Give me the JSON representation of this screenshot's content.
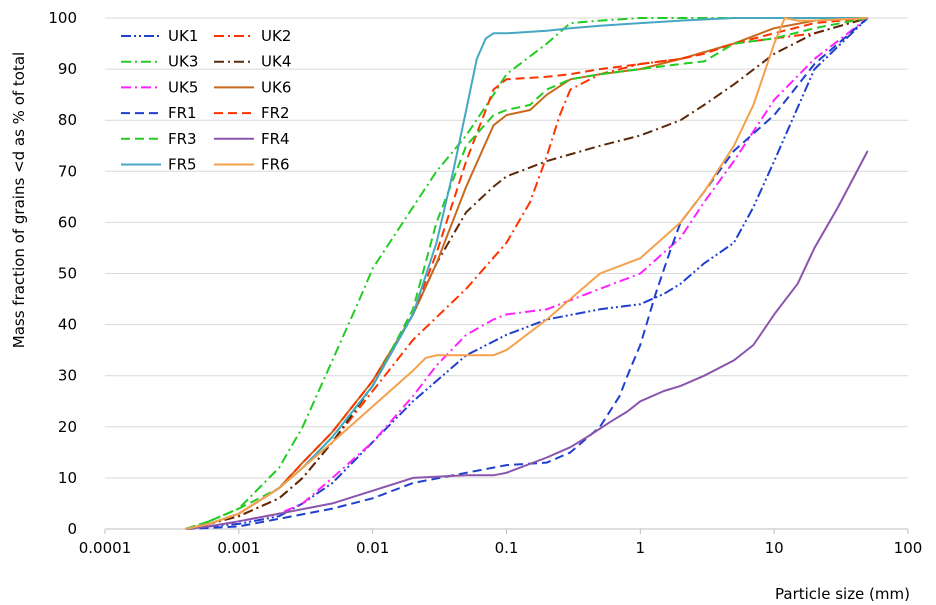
{
  "chart_data": {
    "type": "line",
    "title": "",
    "xlabel": "Particle size (mm)",
    "ylabel": "Mass fraction of grains <d as % of total",
    "x_scale": "log",
    "xlim": [
      0.0001,
      100
    ],
    "ylim": [
      0,
      100
    ],
    "x_ticks": [
      "0.0001",
      "0.001",
      "0.01",
      "0.1",
      "1",
      "10",
      "100"
    ],
    "y_ticks": [
      "0",
      "10",
      "20",
      "30",
      "40",
      "50",
      "60",
      "70",
      "80",
      "90",
      "100"
    ],
    "grid": "horizontal",
    "legend": {
      "placement": "top-left",
      "columns": 2
    },
    "series": [
      {
        "name": "UK1",
        "color": "#1f3fcf",
        "dash": "dashdotdot",
        "points": [
          [
            0.0004,
            0
          ],
          [
            0.0006,
            0.5
          ],
          [
            0.001,
            1
          ],
          [
            0.002,
            2.5
          ],
          [
            0.003,
            5
          ],
          [
            0.005,
            9
          ],
          [
            0.01,
            17
          ],
          [
            0.02,
            25
          ],
          [
            0.05,
            34
          ],
          [
            0.1,
            38
          ],
          [
            0.2,
            41
          ],
          [
            0.5,
            43
          ],
          [
            1,
            44
          ],
          [
            1.5,
            46
          ],
          [
            2,
            48
          ],
          [
            3,
            52
          ],
          [
            5,
            56
          ],
          [
            7,
            63
          ],
          [
            10,
            72
          ],
          [
            20,
            90
          ],
          [
            50,
            100
          ]
        ]
      },
      {
        "name": "UK2",
        "color": "#ff3300",
        "dash": "dashdot",
        "points": [
          [
            0.0004,
            0
          ],
          [
            0.0006,
            1
          ],
          [
            0.001,
            2.5
          ],
          [
            0.002,
            6
          ],
          [
            0.003,
            10
          ],
          [
            0.005,
            17
          ],
          [
            0.01,
            27
          ],
          [
            0.02,
            37
          ],
          [
            0.05,
            47
          ],
          [
            0.1,
            56
          ],
          [
            0.15,
            64
          ],
          [
            0.2,
            73
          ],
          [
            0.25,
            81
          ],
          [
            0.3,
            86
          ],
          [
            0.5,
            89
          ],
          [
            1,
            91
          ],
          [
            2,
            92
          ],
          [
            5,
            95
          ],
          [
            10,
            96
          ],
          [
            20,
            97
          ],
          [
            50,
            100
          ]
        ]
      },
      {
        "name": "UK3",
        "color": "#22cc22",
        "dash": "dashdot",
        "points": [
          [
            0.0004,
            0
          ],
          [
            0.0006,
            1.5
          ],
          [
            0.001,
            4
          ],
          [
            0.002,
            12
          ],
          [
            0.003,
            20
          ],
          [
            0.005,
            33
          ],
          [
            0.008,
            45
          ],
          [
            0.01,
            51
          ],
          [
            0.02,
            63
          ],
          [
            0.03,
            70
          ],
          [
            0.05,
            77
          ],
          [
            0.08,
            85
          ],
          [
            0.1,
            89
          ],
          [
            0.2,
            95
          ],
          [
            0.3,
            99
          ],
          [
            0.5,
            99.5
          ],
          [
            1,
            100
          ],
          [
            50,
            100
          ]
        ]
      },
      {
        "name": "UK4",
        "color": "#5c2a0a",
        "dash": "dashdot",
        "points": [
          [
            0.0004,
            0
          ],
          [
            0.0006,
            1
          ],
          [
            0.001,
            2.5
          ],
          [
            0.002,
            6
          ],
          [
            0.003,
            10
          ],
          [
            0.005,
            17
          ],
          [
            0.01,
            28
          ],
          [
            0.02,
            42
          ],
          [
            0.03,
            52
          ],
          [
            0.05,
            62
          ],
          [
            0.08,
            67
          ],
          [
            0.1,
            69
          ],
          [
            0.2,
            72
          ],
          [
            0.5,
            75
          ],
          [
            1,
            77
          ],
          [
            2,
            80
          ],
          [
            3,
            83
          ],
          [
            5,
            87
          ],
          [
            10,
            93
          ],
          [
            20,
            97
          ],
          [
            50,
            100
          ]
        ]
      },
      {
        "name": "UK5",
        "color": "#ff22ff",
        "dash": "dashdot",
        "points": [
          [
            0.0004,
            0
          ],
          [
            0.0006,
            0.5
          ],
          [
            0.001,
            1.5
          ],
          [
            0.002,
            3
          ],
          [
            0.003,
            5
          ],
          [
            0.005,
            10
          ],
          [
            0.01,
            17
          ],
          [
            0.02,
            26
          ],
          [
            0.03,
            32
          ],
          [
            0.05,
            38
          ],
          [
            0.08,
            41
          ],
          [
            0.1,
            42
          ],
          [
            0.2,
            43
          ],
          [
            0.5,
            47
          ],
          [
            1,
            50
          ],
          [
            2,
            57
          ],
          [
            3,
            64
          ],
          [
            5,
            72
          ],
          [
            10,
            84
          ],
          [
            20,
            92
          ],
          [
            50,
            100
          ]
        ]
      },
      {
        "name": "UK6",
        "color": "#c8691e",
        "dash": "solid",
        "points": [
          [
            0.0004,
            0
          ],
          [
            0.0006,
            1
          ],
          [
            0.001,
            3
          ],
          [
            0.002,
            8
          ],
          [
            0.003,
            13
          ],
          [
            0.005,
            19
          ],
          [
            0.01,
            29
          ],
          [
            0.02,
            42
          ],
          [
            0.03,
            52
          ],
          [
            0.05,
            67
          ],
          [
            0.08,
            79
          ],
          [
            0.1,
            81
          ],
          [
            0.15,
            82
          ],
          [
            0.2,
            85
          ],
          [
            0.3,
            88
          ],
          [
            0.5,
            89
          ],
          [
            1,
            90
          ],
          [
            2,
            92
          ],
          [
            5,
            95
          ],
          [
            10,
            98
          ],
          [
            20,
            99.5
          ],
          [
            50,
            100
          ]
        ]
      },
      {
        "name": "FR1",
        "color": "#1f3fcf",
        "dash": "dashed",
        "points": [
          [
            0.0004,
            0
          ],
          [
            0.001,
            0.5
          ],
          [
            0.002,
            2
          ],
          [
            0.005,
            4
          ],
          [
            0.01,
            6
          ],
          [
            0.02,
            9
          ],
          [
            0.05,
            11
          ],
          [
            0.1,
            12.5
          ],
          [
            0.2,
            13
          ],
          [
            0.3,
            15
          ],
          [
            0.5,
            20
          ],
          [
            0.7,
            26
          ],
          [
            0.8,
            30
          ],
          [
            1,
            36
          ],
          [
            1.3,
            46
          ],
          [
            1.7,
            55
          ],
          [
            2,
            60
          ],
          [
            3,
            66
          ],
          [
            5,
            74
          ],
          [
            10,
            81
          ],
          [
            20,
            91
          ],
          [
            50,
            100
          ]
        ]
      },
      {
        "name": "FR2",
        "color": "#ff3300",
        "dash": "dashed",
        "points": [
          [
            0.0004,
            0
          ],
          [
            0.0006,
            1
          ],
          [
            0.001,
            3
          ],
          [
            0.002,
            8
          ],
          [
            0.003,
            13
          ],
          [
            0.005,
            19
          ],
          [
            0.01,
            29
          ],
          [
            0.02,
            42
          ],
          [
            0.03,
            54
          ],
          [
            0.05,
            72
          ],
          [
            0.07,
            82
          ],
          [
            0.08,
            86
          ],
          [
            0.1,
            88
          ],
          [
            0.2,
            88.5
          ],
          [
            0.3,
            89
          ],
          [
            0.5,
            90
          ],
          [
            1,
            91
          ],
          [
            2,
            92
          ],
          [
            3,
            93
          ],
          [
            5,
            95
          ],
          [
            10,
            97
          ],
          [
            20,
            99
          ],
          [
            50,
            100
          ]
        ]
      },
      {
        "name": "FR3",
        "color": "#22cc22",
        "dash": "dashed",
        "points": [
          [
            0.0004,
            0
          ],
          [
            0.0006,
            1.5
          ],
          [
            0.001,
            4
          ],
          [
            0.002,
            8
          ],
          [
            0.003,
            12
          ],
          [
            0.005,
            18
          ],
          [
            0.01,
            28
          ],
          [
            0.02,
            43
          ],
          [
            0.03,
            60
          ],
          [
            0.05,
            75
          ],
          [
            0.08,
            81
          ],
          [
            0.1,
            82
          ],
          [
            0.15,
            83
          ],
          [
            0.2,
            86
          ],
          [
            0.3,
            88
          ],
          [
            0.5,
            89
          ],
          [
            1,
            90
          ],
          [
            2,
            91
          ],
          [
            3,
            91.5
          ],
          [
            5,
            95
          ],
          [
            10,
            96
          ],
          [
            20,
            98
          ],
          [
            50,
            100
          ]
        ]
      },
      {
        "name": "FR4",
        "color": "#8a55ad",
        "dash": "solid",
        "points": [
          [
            0.0004,
            0
          ],
          [
            0.0006,
            0.5
          ],
          [
            0.001,
            1.5
          ],
          [
            0.002,
            3
          ],
          [
            0.005,
            5
          ],
          [
            0.01,
            7.5
          ],
          [
            0.02,
            10
          ],
          [
            0.05,
            10.5
          ],
          [
            0.08,
            10.5
          ],
          [
            0.1,
            11
          ],
          [
            0.2,
            14
          ],
          [
            0.3,
            16
          ],
          [
            0.4,
            18
          ],
          [
            0.6,
            21
          ],
          [
            0.8,
            23
          ],
          [
            1,
            25
          ],
          [
            1.5,
            27
          ],
          [
            2,
            28
          ],
          [
            3,
            30
          ],
          [
            5,
            33
          ],
          [
            7,
            36
          ],
          [
            10,
            42
          ],
          [
            15,
            48
          ],
          [
            20,
            55
          ],
          [
            30,
            63
          ],
          [
            50,
            74
          ]
        ]
      },
      {
        "name": "FR5",
        "color": "#45a7c4",
        "dash": "solid",
        "points": [
          [
            0.0004,
            0
          ],
          [
            0.0006,
            1
          ],
          [
            0.001,
            3
          ],
          [
            0.002,
            8
          ],
          [
            0.003,
            12
          ],
          [
            0.005,
            18
          ],
          [
            0.01,
            28
          ],
          [
            0.02,
            42
          ],
          [
            0.03,
            56
          ],
          [
            0.04,
            70
          ],
          [
            0.05,
            82
          ],
          [
            0.06,
            92
          ],
          [
            0.07,
            96
          ],
          [
            0.08,
            97
          ],
          [
            0.1,
            97
          ],
          [
            0.2,
            97.5
          ],
          [
            0.3,
            98
          ],
          [
            0.5,
            98.5
          ],
          [
            1,
            99
          ],
          [
            2,
            99.5
          ],
          [
            5,
            100
          ],
          [
            50,
            100
          ]
        ]
      },
      {
        "name": "FR6",
        "color": "#f5a04a",
        "dash": "solid",
        "points": [
          [
            0.0004,
            0
          ],
          [
            0.0006,
            1
          ],
          [
            0.001,
            3
          ],
          [
            0.002,
            8
          ],
          [
            0.003,
            12
          ],
          [
            0.005,
            17
          ],
          [
            0.01,
            24
          ],
          [
            0.02,
            31
          ],
          [
            0.025,
            33.5
          ],
          [
            0.03,
            34
          ],
          [
            0.05,
            34
          ],
          [
            0.08,
            34
          ],
          [
            0.1,
            35
          ],
          [
            0.2,
            41
          ],
          [
            0.3,
            45
          ],
          [
            0.5,
            50
          ],
          [
            1,
            53
          ],
          [
            2,
            60
          ],
          [
            3,
            66
          ],
          [
            5,
            75
          ],
          [
            7,
            83
          ],
          [
            10,
            95
          ],
          [
            12,
            100
          ],
          [
            15,
            99.5
          ],
          [
            20,
            99.5
          ],
          [
            50,
            100
          ]
        ]
      }
    ]
  }
}
